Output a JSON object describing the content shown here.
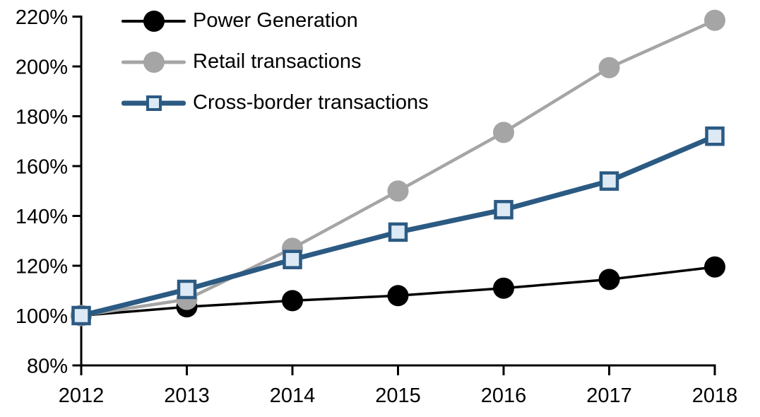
{
  "chart_data": {
    "type": "line",
    "categories": [
      "2012",
      "2013",
      "2014",
      "2015",
      "2016",
      "2017",
      "2018"
    ],
    "series": [
      {
        "name": "Power Generation",
        "values": [
          100,
          103.5,
          106,
          108,
          111,
          114.5,
          119.5
        ],
        "color": "#000000",
        "marker": "circle",
        "marker_fill": "#000000",
        "line_width": 3.5
      },
      {
        "name": "Retail transactions",
        "values": [
          100,
          106.5,
          127,
          150,
          173.5,
          199.5,
          218.5
        ],
        "color": "#a5a5a5",
        "marker": "circle",
        "marker_fill": "#a5a5a5",
        "line_width": 4.5
      },
      {
        "name": "Cross-border transactions",
        "values": [
          100,
          110.5,
          122.5,
          133.5,
          142.5,
          154,
          172
        ],
        "color": "#2b5a83",
        "marker": "square",
        "marker_fill": "#dde9f5",
        "line_width": 7
      }
    ],
    "ylim": [
      80,
      220
    ],
    "y_ticks": [
      80,
      100,
      120,
      140,
      160,
      180,
      200,
      220
    ],
    "y_tick_labels": [
      "80%",
      "100%",
      "120%",
      "140%",
      "160%",
      "180%",
      "200%",
      "220%"
    ],
    "xlabel": "",
    "ylabel": "",
    "grid": false,
    "legend_position": "top-left-inside",
    "axis_color": "#000000"
  }
}
